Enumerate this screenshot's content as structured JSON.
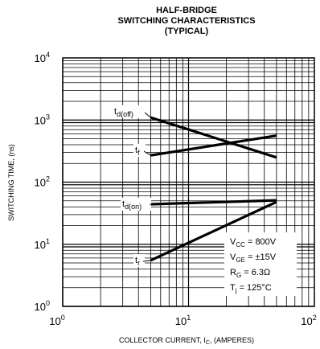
{
  "title_lines": [
    "HALF-BRIDGE",
    "SWITCHING CHARACTERISTICS",
    "(TYPICAL)"
  ],
  "xlabel": {
    "prefix": "COLLECTOR CURRENT, I",
    "sub": "C",
    "suffix": ", (AMPERES)"
  },
  "ylabel": "SWITCHING TIME, (ns)",
  "x_tick_labels": [
    {
      "base": "10",
      "exp": "0"
    },
    {
      "base": "10",
      "exp": "1"
    },
    {
      "base": "10",
      "exp": "2"
    }
  ],
  "y_tick_labels": [
    {
      "base": "10",
      "exp": "0"
    },
    {
      "base": "10",
      "exp": "1"
    },
    {
      "base": "10",
      "exp": "2"
    },
    {
      "base": "10",
      "exp": "3"
    },
    {
      "base": "10",
      "exp": "4"
    }
  ],
  "conditions": [
    {
      "main": "V",
      "sub": "CC",
      "rest": " = 800V"
    },
    {
      "main": "V",
      "sub": "GE",
      "rest": " = ±15V"
    },
    {
      "main": "R",
      "sub": "G",
      "rest": " = 6.3Ω"
    },
    {
      "main": "T",
      "sub": "j",
      "rest": " = 125°C"
    }
  ],
  "chart_data": {
    "type": "line",
    "title": "HALF-BRIDGE SWITCHING CHARACTERISTICS (TYPICAL)",
    "xlabel": "COLLECTOR CURRENT, IC, (AMPERES)",
    "ylabel": "SWITCHING TIME, (ns)",
    "x_scale": "log",
    "y_scale": "log",
    "xlim": [
      1,
      100
    ],
    "ylim": [
      1,
      10000
    ],
    "grid": true,
    "series": [
      {
        "name": "td(off)",
        "label_main": "t",
        "label_sub": "d(off)",
        "x": [
          5,
          50
        ],
        "y": [
          1100,
          250
        ]
      },
      {
        "name": "tf",
        "label_main": "t",
        "label_sub": "f",
        "x": [
          5,
          50
        ],
        "y": [
          270,
          560
        ]
      },
      {
        "name": "td(on)",
        "label_main": "t",
        "label_sub": "d(on)",
        "x": [
          5,
          50
        ],
        "y": [
          44,
          51
        ]
      },
      {
        "name": "tr",
        "label_main": "t",
        "label_sub": "r",
        "x": [
          5,
          50
        ],
        "y": [
          5.5,
          48
        ]
      }
    ]
  }
}
